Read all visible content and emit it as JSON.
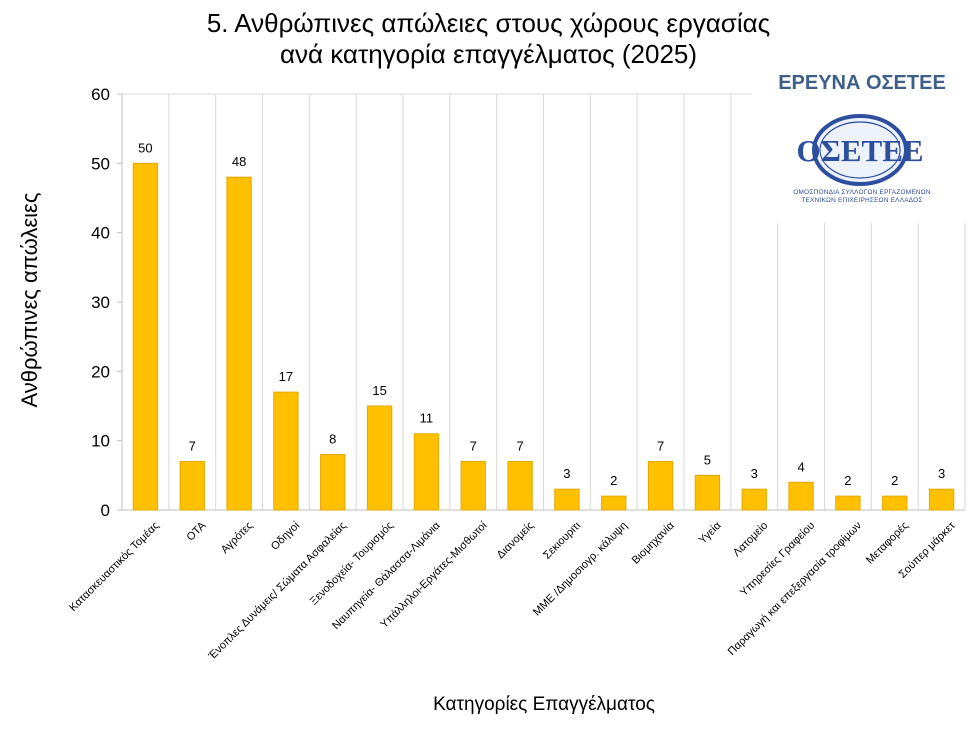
{
  "title": {
    "line1": "5. Ανθρώπινες απώλειες στους χώρους εργασίας",
    "line2": "ανά κατηγορία επαγγέλματος (2025)"
  },
  "logo": {
    "title": "ΕΡΕΥΝΑ ΟΣΕΤΕΕ",
    "emblem_text": "ΟΣΕΤΕΕ",
    "subtitle_line1": "ΟΜΟΣΠΟΝΔΙΑ ΣΥΛΛΟΓΩΝ ΕΡΓΑΖΟΜΕΝΩΝ",
    "subtitle_line2": "ΤΕΧΝΙΚΩΝ ΕΠΙΧΕΙΡΗΣΕΩΝ ΕΛΛΑΔΟΣ",
    "color": "#3d5f8a"
  },
  "chart_data": {
    "type": "bar",
    "title": "5. Ανθρώπινες απώλειες στους χώρους εργασίας ανά κατηγορία επαγγέλματος (2025)",
    "xlabel": "Κατηγορίες Επαγγέλματος",
    "ylabel": "Ανθρώπινες απώλειες",
    "ylim": [
      0,
      60
    ],
    "yticks": [
      0,
      10,
      20,
      30,
      40,
      50,
      60
    ],
    "grid": "vertical",
    "legend": "none",
    "bar_color": "#ffc000",
    "bar_edge_color": "#e6a800",
    "categories": [
      "Κατασκευαστικός Τομέας",
      "ΟΤΑ",
      "Αγρότες",
      "Οδηγοί",
      "Ένοπλες Δυνάμεις/ Σώματα Ασφαλείας",
      "Ξενοδοχεία- Τουρισμός",
      "Ναυπηγεία- Θάλασσα-Λιμάνια",
      "Υπάλληλοι-Εργάτες-Μισθωτοί",
      "Διανομείς",
      "Σεκιουριτι",
      "ΜΜΕ /Δημοσιογρ. κάλυψη",
      "Βιομηχανία",
      "Υγεία",
      "Λατομείο",
      "Υπηρεσίες Γραφείου",
      "Παραγωγή και επεξεργασία τροφίμων",
      "Μεταφορές",
      "Σούπερ μάρκετ"
    ],
    "values": [
      50,
      7,
      48,
      17,
      8,
      15,
      11,
      7,
      7,
      3,
      2,
      7,
      5,
      3,
      4,
      2,
      2,
      3
    ]
  }
}
